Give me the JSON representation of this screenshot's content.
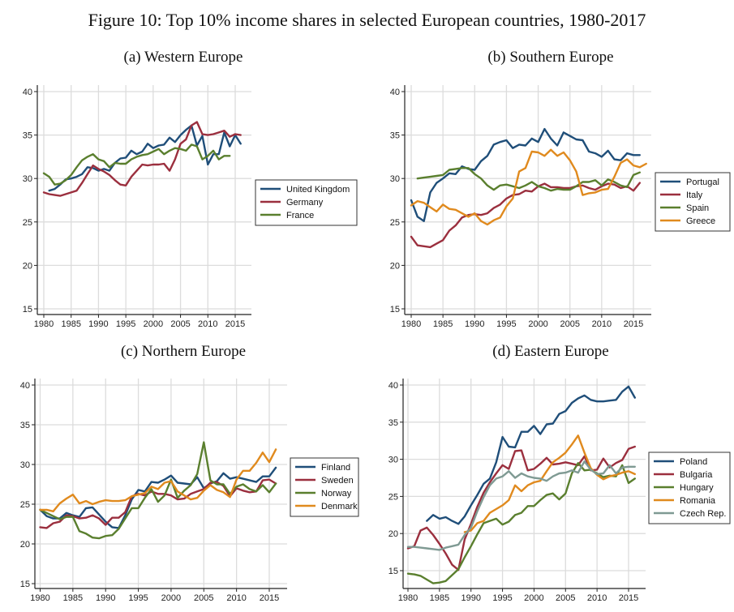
{
  "figure_title": "Figure 10: Top 10% income shares in selected European countries, 1980-2017",
  "chart_data": [
    {
      "type": "line",
      "title": "(a) Western Europe",
      "xlabel": "",
      "ylabel": "",
      "xlim": [
        1980,
        2017
      ],
      "ylim": [
        15,
        40
      ],
      "xticks": [
        1980,
        1985,
        1990,
        1995,
        2000,
        2005,
        2010,
        2015
      ],
      "yticks": [
        15,
        20,
        25,
        30,
        35,
        40
      ],
      "grid": true,
      "legend_position": "right",
      "series": [
        {
          "name": "United Kingdom",
          "color": "#1f4e79",
          "start": 1981,
          "values": [
            28.6,
            28.8,
            29.3,
            29.9,
            30.0,
            30.2,
            30.5,
            31.3,
            31.2,
            30.9,
            31.1,
            30.9,
            31.8,
            32.3,
            32.4,
            33.2,
            32.8,
            33.1,
            34.0,
            33.5,
            33.8,
            33.9,
            34.7,
            34.2,
            35.0,
            35.6,
            36.1,
            33.8,
            34.9,
            31.6,
            32.8,
            32.8,
            35.3,
            33.7,
            35.0,
            34.0
          ]
        },
        {
          "name": "Germany",
          "color": "#9b2f3e",
          "start": 1980,
          "values": [
            28.4,
            28.2,
            28.1,
            28.0,
            28.2,
            28.4,
            28.6,
            29.5,
            30.5,
            31.5,
            31.1,
            30.8,
            30.4,
            29.8,
            29.3,
            29.2,
            30.2,
            30.9,
            31.6,
            31.5,
            31.6,
            31.6,
            31.7,
            30.9,
            32.2,
            34.0,
            34.5,
            36.1,
            36.5,
            35.1,
            35.0,
            35.1,
            35.3,
            35.5,
            34.8,
            35.1,
            35.0
          ]
        },
        {
          "name": "France",
          "color": "#5a7f2e",
          "start": 1980,
          "values": [
            30.6,
            30.2,
            29.3,
            29.4,
            29.8,
            30.4,
            31.3,
            32.1,
            32.5,
            32.8,
            32.2,
            32.0,
            31.3,
            31.8,
            31.7,
            31.7,
            32.2,
            32.5,
            32.7,
            32.8,
            33.1,
            33.4,
            32.8,
            33.2,
            33.5,
            33.4,
            33.2,
            33.9,
            33.7,
            32.2,
            32.6,
            33.2,
            32.2,
            32.6,
            32.6
          ]
        }
      ]
    },
    {
      "type": "line",
      "title": "(b) Southern Europe",
      "xlabel": "",
      "ylabel": "",
      "xlim": [
        1980,
        2017
      ],
      "ylim": [
        15,
        40
      ],
      "xticks": [
        1980,
        1985,
        1990,
        1995,
        2000,
        2005,
        2010,
        2015
      ],
      "yticks": [
        15,
        20,
        25,
        30,
        35,
        40
      ],
      "grid": true,
      "legend_position": "right",
      "series": [
        {
          "name": "Portugal",
          "color": "#1f4e79",
          "start": 1980,
          "values": [
            27.5,
            25.6,
            25.1,
            28.4,
            29.5,
            30.0,
            30.6,
            30.5,
            31.4,
            31.1,
            31.0,
            32.0,
            32.6,
            33.9,
            34.2,
            34.4,
            33.5,
            33.9,
            33.8,
            34.6,
            34.2,
            35.7,
            34.6,
            33.8,
            35.3,
            34.9,
            34.5,
            34.4,
            33.1,
            32.9,
            32.5,
            33.2,
            32.2,
            32.1,
            32.9,
            32.7,
            32.7
          ]
        },
        {
          "name": "Italy",
          "color": "#9b2f3e",
          "start": 1980,
          "values": [
            23.3,
            22.3,
            22.2,
            22.1,
            22.5,
            22.9,
            24.0,
            24.6,
            25.5,
            25.8,
            25.9,
            25.8,
            26.0,
            26.6,
            27.0,
            27.7,
            28.1,
            28.2,
            28.6,
            28.5,
            29.1,
            29.4,
            29.0,
            29.0,
            28.9,
            28.9,
            29.1,
            29.2,
            28.9,
            28.7,
            29.1,
            29.4,
            29.3,
            28.9,
            29.1,
            28.6,
            29.5
          ]
        },
        {
          "name": "Spain",
          "color": "#5a7f2e",
          "start": 1981,
          "values": [
            30.0,
            30.1,
            30.2,
            30.3,
            30.4,
            31.0,
            31.1,
            31.2,
            31.2,
            30.5,
            30.0,
            29.2,
            28.7,
            29.2,
            29.3,
            29.1,
            28.9,
            29.2,
            29.6,
            29.1,
            28.9,
            28.6,
            28.8,
            28.7,
            28.7,
            29.1,
            29.6,
            29.6,
            29.8,
            29.2,
            29.9,
            29.6,
            29.2,
            29.0,
            30.4,
            30.7
          ]
        },
        {
          "name": "Greece",
          "color": "#e08a1e",
          "start": 1980,
          "values": [
            26.9,
            27.4,
            27.2,
            26.7,
            26.2,
            27.0,
            26.5,
            26.4,
            26.0,
            25.6,
            26.0,
            25.1,
            24.7,
            25.2,
            25.5,
            26.8,
            27.7,
            30.8,
            31.2,
            33.1,
            33.0,
            32.6,
            33.3,
            32.6,
            33.0,
            32.1,
            30.8,
            28.1,
            28.3,
            28.4,
            28.7,
            28.8,
            30.2,
            31.8,
            32.2,
            31.5,
            31.3,
            31.7
          ]
        }
      ]
    },
    {
      "type": "line",
      "title": "(c) Northern Europe",
      "xlabel": "",
      "ylabel": "",
      "xlim": [
        1980,
        2017
      ],
      "ylim": [
        15,
        40
      ],
      "xticks": [
        1980,
        1985,
        1990,
        1995,
        2000,
        2005,
        2010,
        2015
      ],
      "yticks": [
        15,
        20,
        25,
        30,
        35,
        40
      ],
      "grid": true,
      "legend_position": "right",
      "series": [
        {
          "name": "Finland",
          "color": "#1f4e79",
          "start": 1980,
          "values": [
            24.3,
            23.5,
            23.2,
            23.2,
            23.9,
            23.6,
            23.4,
            24.5,
            24.6,
            23.7,
            22.8,
            22.1,
            22.0,
            23.6,
            25.6,
            26.8,
            26.6,
            27.8,
            27.7,
            28.1,
            28.6,
            27.7,
            27.6,
            27.5,
            28.4,
            27.0,
            27.6,
            27.9,
            28.9,
            28.2,
            28.4,
            28.2,
            28.0,
            27.8,
            28.5,
            28.5,
            29.6
          ]
        },
        {
          "name": "Sweden",
          "color": "#9b2f3e",
          "start": 1980,
          "values": [
            22.1,
            22.0,
            22.6,
            22.8,
            23.6,
            23.5,
            23.2,
            23.3,
            23.6,
            23.2,
            22.4,
            23.3,
            23.3,
            24.0,
            26.0,
            26.3,
            26.1,
            26.6,
            26.3,
            26.3,
            26.1,
            25.6,
            25.7,
            26.3,
            26.6,
            26.9,
            27.7,
            27.8,
            27.3,
            26.0,
            27.0,
            26.7,
            26.5,
            26.6,
            28.0,
            28.1,
            27.6
          ]
        },
        {
          "name": "Norway",
          "color": "#5a7f2e",
          "start": 1980,
          "values": [
            24.3,
            23.9,
            23.5,
            23.1,
            23.4,
            23.4,
            21.6,
            21.3,
            20.8,
            20.7,
            21.0,
            21.1,
            21.9,
            23.2,
            24.5,
            24.5,
            25.8,
            26.9,
            25.3,
            26.1,
            28.1,
            25.8,
            26.7,
            27.4,
            28.8,
            32.8,
            28.0,
            27.5,
            27.5,
            26.3,
            27.2,
            27.5,
            26.9,
            26.6,
            27.4,
            26.5,
            27.6
          ]
        },
        {
          "name": "Denmark",
          "color": "#e08a1e",
          "start": 1980,
          "values": [
            24.3,
            24.3,
            24.1,
            25.1,
            25.7,
            26.2,
            25.1,
            25.4,
            25.0,
            25.3,
            25.5,
            25.4,
            25.4,
            25.5,
            26.0,
            26.2,
            26.4,
            27.2,
            26.9,
            27.7,
            27.9,
            26.6,
            26.1,
            25.6,
            25.8,
            26.7,
            27.4,
            26.8,
            26.5,
            25.9,
            28.1,
            29.2,
            29.2,
            30.2,
            31.5,
            30.3,
            31.9
          ]
        }
      ]
    },
    {
      "type": "line",
      "title": "(d) Eastern Europe",
      "xlabel": "",
      "ylabel": "",
      "xlim": [
        1980,
        2017
      ],
      "ylim": [
        12.6,
        40.5
      ],
      "xticks": [
        1980,
        1985,
        1990,
        1995,
        2000,
        2005,
        2010,
        2015
      ],
      "yticks": [
        15,
        20,
        25,
        30,
        35,
        40
      ],
      "grid": true,
      "legend_position": "right",
      "series": [
        {
          "name": "Poland",
          "color": "#1f4e79",
          "start": 1983,
          "values": [
            21.7,
            22.5,
            22.0,
            22.2,
            21.7,
            21.3,
            22.3,
            23.8,
            25.2,
            26.7,
            27.4,
            29.6,
            33.0,
            31.7,
            31.6,
            33.7,
            33.7,
            34.5,
            33.4,
            34.7,
            34.8,
            36.1,
            36.5,
            37.6,
            38.2,
            38.6,
            38.0,
            37.8,
            37.8,
            37.9,
            38.0,
            39.1,
            39.8,
            38.3
          ]
        },
        {
          "name": "Bulgaria",
          "color": "#9b2f3e",
          "start": 1980,
          "values": [
            18.0,
            18.3,
            20.4,
            20.8,
            19.8,
            18.6,
            17.3,
            15.8,
            15.1,
            19.2,
            21.3,
            23.6,
            25.5,
            26.9,
            28.1,
            29.2,
            28.7,
            31.1,
            31.2,
            28.5,
            28.7,
            29.4,
            30.2,
            29.3,
            29.4,
            29.6,
            29.4,
            29.2,
            30.4,
            28.5,
            28.6,
            30.1,
            28.9,
            29.5,
            29.9,
            31.4,
            31.7
          ]
        },
        {
          "name": "Hungary",
          "color": "#5a7f2e",
          "start": 1980,
          "values": [
            14.6,
            14.5,
            14.3,
            13.8,
            13.3,
            13.4,
            13.6,
            14.4,
            15.2,
            16.8,
            18.3,
            19.9,
            21.4,
            21.7,
            22.0,
            21.2,
            21.6,
            22.5,
            22.8,
            23.7,
            23.7,
            24.5,
            25.2,
            25.4,
            24.6,
            25.4,
            28.1,
            29.5,
            28.5,
            28.6,
            28.1,
            27.6,
            27.8,
            27.7,
            29.2,
            26.8,
            27.4
          ]
        },
        {
          "name": "Romania",
          "color": "#e08a1e",
          "start": 1989,
          "values": [
            20.2,
            20.4,
            21.4,
            21.7,
            22.8,
            23.3,
            23.8,
            24.5,
            26.5,
            25.7,
            26.5,
            26.9,
            27.1,
            28.4,
            29.6,
            30.2,
            30.9,
            32.0,
            33.2,
            30.9,
            28.8,
            27.9,
            27.3,
            27.7,
            27.9,
            28.2,
            28.4,
            28.0
          ]
        },
        {
          "name": "Czech Rep.",
          "color": "#7f9a93",
          "start": 1980,
          "values": [
            18.2,
            18.2,
            18.1,
            18.0,
            17.9,
            17.8,
            18.1,
            18.3,
            18.5,
            19.8,
            20.8,
            23.0,
            24.9,
            26.5,
            27.4,
            27.7,
            28.4,
            27.5,
            28.1,
            27.7,
            27.5,
            27.4,
            27.1,
            27.7,
            28.1,
            28.2,
            28.5,
            28.2,
            29.7,
            28.6,
            28.0,
            28.1,
            29.2,
            28.1,
            28.9,
            29.0,
            29.0
          ]
        }
      ]
    }
  ]
}
